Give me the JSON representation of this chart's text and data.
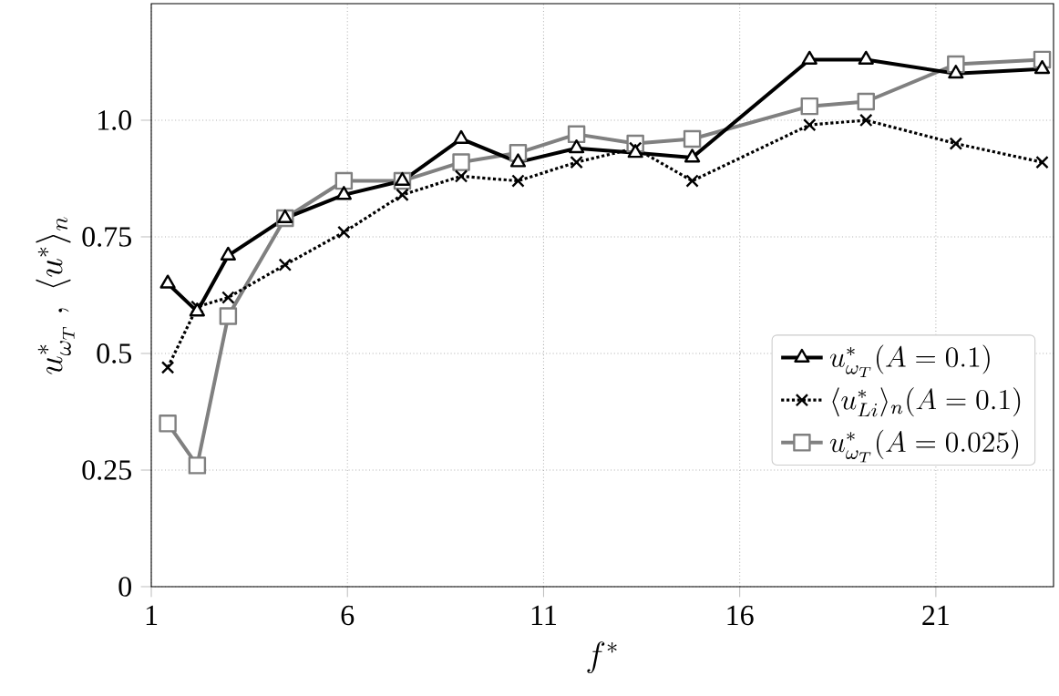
{
  "chart_data": {
    "type": "line",
    "xlabel": "f^*",
    "ylabel": "u^*_{\\omega_T}\\ ,\\ \\langle u^*\\rangle_n",
    "x": [
      1.42,
      2.17,
      2.96,
      4.41,
      5.91,
      7.4,
      8.9,
      10.35,
      11.84,
      13.34,
      14.79,
      17.78,
      19.22,
      21.51,
      23.71
    ],
    "series": [
      {
        "name": "u^*_{\\omega_T}(A=0.1)",
        "color": "#000000",
        "marker": "triangle",
        "line_style": "solid",
        "values": [
          0.65,
          0.59,
          0.71,
          0.79,
          0.84,
          0.87,
          0.96,
          0.91,
          0.94,
          0.93,
          0.92,
          1.13,
          1.13,
          1.1,
          1.11
        ]
      },
      {
        "name": "\\langle u^*_{Li}\\rangle_n(A=0.1)",
        "color": "#000000",
        "marker": "cross",
        "line_style": "dotted",
        "values": [
          0.47,
          0.6,
          0.62,
          0.69,
          0.76,
          0.84,
          0.88,
          0.87,
          0.91,
          0.94,
          0.87,
          0.99,
          1.0,
          0.95,
          0.91
        ]
      },
      {
        "name": "u^*_{\\omega_T}(A=0.025)",
        "color": "#808080",
        "marker": "square",
        "line_style": "solid",
        "values": [
          0.35,
          0.26,
          0.58,
          0.79,
          0.87,
          0.87,
          0.91,
          0.93,
          0.97,
          0.95,
          0.96,
          1.03,
          1.04,
          1.12,
          1.13
        ]
      }
    ],
    "xlim": [
      1,
      24
    ],
    "ylim": [
      0,
      1.25
    ],
    "xticks": [
      1,
      6,
      11,
      16,
      21
    ],
    "yticks": [
      0,
      0.25,
      0.5,
      0.75,
      {
        "value": 1,
        "label": "1.0"
      }
    ],
    "grid": true,
    "legend": "right"
  }
}
